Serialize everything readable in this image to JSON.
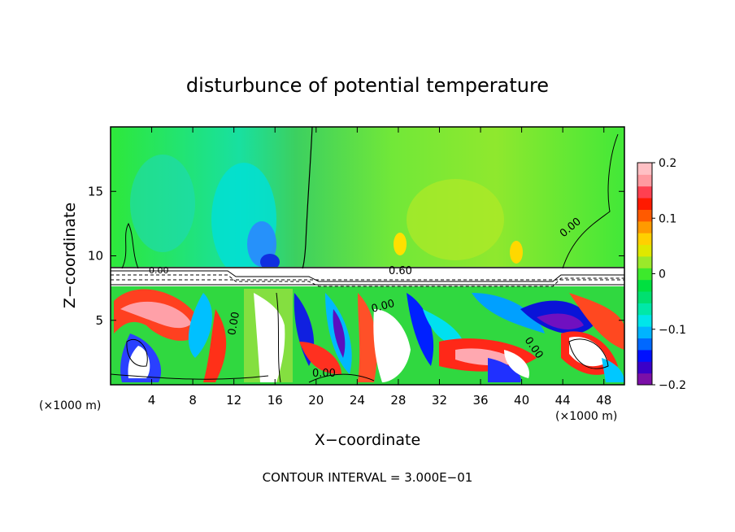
{
  "chart_data": {
    "type": "heatmap",
    "title": "disturbunce of potential temperature",
    "xlabel": "X−coordinate",
    "ylabel": "Z−coordinate",
    "x_unit": "(×1000 m)",
    "x_unit_right": "(×1000 m)",
    "xlim": [
      0,
      50
    ],
    "ylim": [
      0,
      20
    ],
    "xticks": [
      4,
      8,
      12,
      16,
      20,
      24,
      28,
      32,
      36,
      40,
      44,
      48
    ],
    "yticks": [
      5,
      10,
      15
    ],
    "footer": "CONTOUR INTERVAL = 3.000E−01",
    "colorbar": {
      "range": [
        -0.2,
        0.2
      ],
      "labels": [
        "0.2",
        "0.1",
        "0",
        "−0.1",
        "−0.2"
      ],
      "colors": [
        "#7b0fa7",
        "#3a00c8",
        "#0010ff",
        "#0068ff",
        "#00b4ff",
        "#00e6ea",
        "#00e8a8",
        "#00e070",
        "#00e040",
        "#3de92c",
        "#9ae92a",
        "#dfe800",
        "#ffd000",
        "#ff9a00",
        "#ff5a00",
        "#ff1a00",
        "#ff4050",
        "#ff9aa0",
        "#ffc0c4"
      ]
    },
    "contour_labels": [
      "0.00",
      "0.60",
      "0.00",
      "0.00",
      "0.00",
      "0.00",
      "0.00"
    ],
    "grid": false
  }
}
